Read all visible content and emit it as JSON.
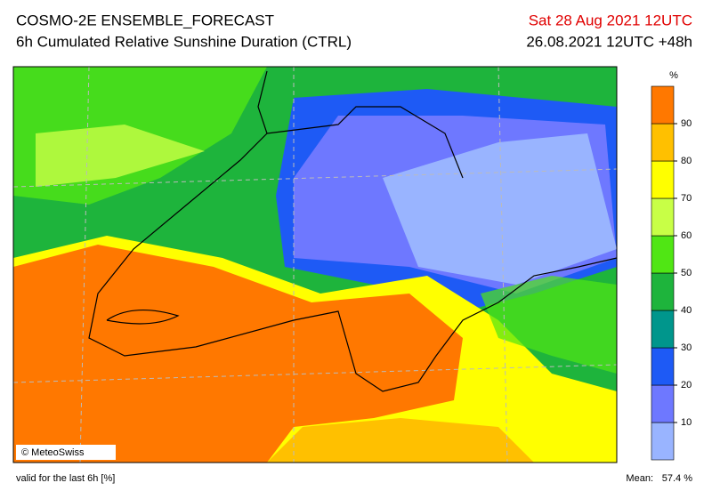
{
  "header": {
    "title": "COSMO-2E ENSEMBLE_FORECAST",
    "subtitle": "6h Cumulated Relative Sunshine Duration (CTRL)",
    "valid_time": "Sat 28 Aug 2021 12UTC",
    "run": "26.08.2021 12UTC +48h"
  },
  "map": {
    "credit": "© MeteoSwiss"
  },
  "colorbar": {
    "unit": "%",
    "ticks": [
      10,
      20,
      30,
      40,
      50,
      60,
      70,
      80,
      90
    ],
    "colors": [
      "#99b4ff",
      "#6e78ff",
      "#1e5af5",
      "#00968c",
      "#1eb43c",
      "#50e614",
      "#c8ff46",
      "#ffff00",
      "#ffc000",
      "#ff7800"
    ]
  },
  "footer": {
    "note": "valid for the last 6h [%]",
    "mean_label": "Mean:",
    "mean_value": "57.4 %"
  }
}
